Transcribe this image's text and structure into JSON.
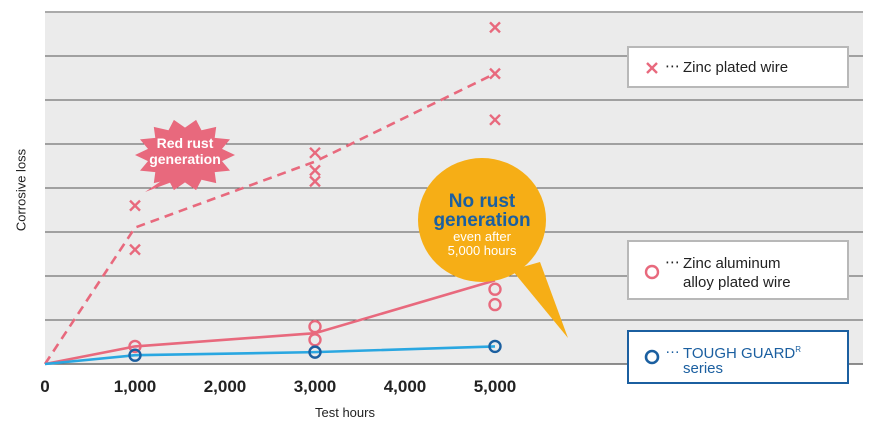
{
  "chart_data": {
    "type": "line",
    "xlabel": "Test hours",
    "ylabel": "Corrosive loss",
    "x_ticks": [
      "0",
      "1,000",
      "2,000",
      "3,000",
      "4,000",
      "5,000"
    ],
    "xlim": [
      0,
      5500
    ],
    "ylim": [
      0,
      8
    ],
    "grid": "horizontal",
    "legend_position": "right",
    "colors": {
      "zinc": "#e8697d",
      "zinc_aluminum": "#e8697d",
      "tough_guard": "#2aa7e1",
      "tough_guard_marker": "#1b5fa0",
      "callout": "#f6ae16",
      "rust_burst": "#e8697d"
    },
    "series": [
      {
        "name": "Zinc plated wire",
        "marker": "x",
        "line_style": "dashed",
        "line": [
          [
            0,
            0
          ],
          [
            1000,
            3.1
          ],
          [
            3000,
            4.6
          ],
          [
            5000,
            6.6
          ]
        ],
        "points": [
          [
            1000,
            3.6
          ],
          [
            1000,
            2.6
          ],
          [
            3000,
            4.8
          ],
          [
            3000,
            4.4
          ],
          [
            3000,
            4.15
          ],
          [
            5000,
            7.65
          ],
          [
            5000,
            6.6
          ],
          [
            5000,
            5.55
          ]
        ]
      },
      {
        "name": "Zinc aluminum alloy plated wire",
        "marker": "circle",
        "line_style": "solid",
        "line": [
          [
            0,
            0
          ],
          [
            1000,
            0.4
          ],
          [
            3000,
            0.7
          ],
          [
            5000,
            1.9
          ]
        ],
        "points": [
          [
            1000,
            0.4
          ],
          [
            3000,
            0.85
          ],
          [
            3000,
            0.55
          ],
          [
            5000,
            2.6
          ],
          [
            5000,
            1.7
          ],
          [
            5000,
            1.35
          ]
        ]
      },
      {
        "name": "TOUGH GUARD series",
        "marker": "circle",
        "line_style": "solid",
        "line": [
          [
            0,
            0
          ],
          [
            1000,
            0.2
          ],
          [
            3000,
            0.27
          ],
          [
            5000,
            0.4
          ]
        ],
        "points": [
          [
            1000,
            0.2
          ],
          [
            3000,
            0.27
          ],
          [
            5000,
            0.4
          ]
        ]
      }
    ],
    "legend": [
      {
        "dots": "⋯",
        "label": "Zinc plated wire"
      },
      {
        "dots": "⋯",
        "label_line1": "Zinc aluminum",
        "label_line2": "alloy plated wire"
      },
      {
        "dots": "…",
        "label_line1": "TOUGH GUARD",
        "sup": "R",
        "label_line2": "series"
      }
    ],
    "annotations": [
      {
        "text_line1": "Red rust",
        "text_line2": "generation",
        "shape": "burst",
        "points_to": [
          1000,
          3.8
        ]
      },
      {
        "text_line1": "No rust",
        "text_line2": "generation",
        "text_line3": "even after",
        "text_line4": "5,000 hours",
        "shape": "speech-bubble",
        "points_to": [
          4850,
          0.6
        ]
      }
    ]
  }
}
